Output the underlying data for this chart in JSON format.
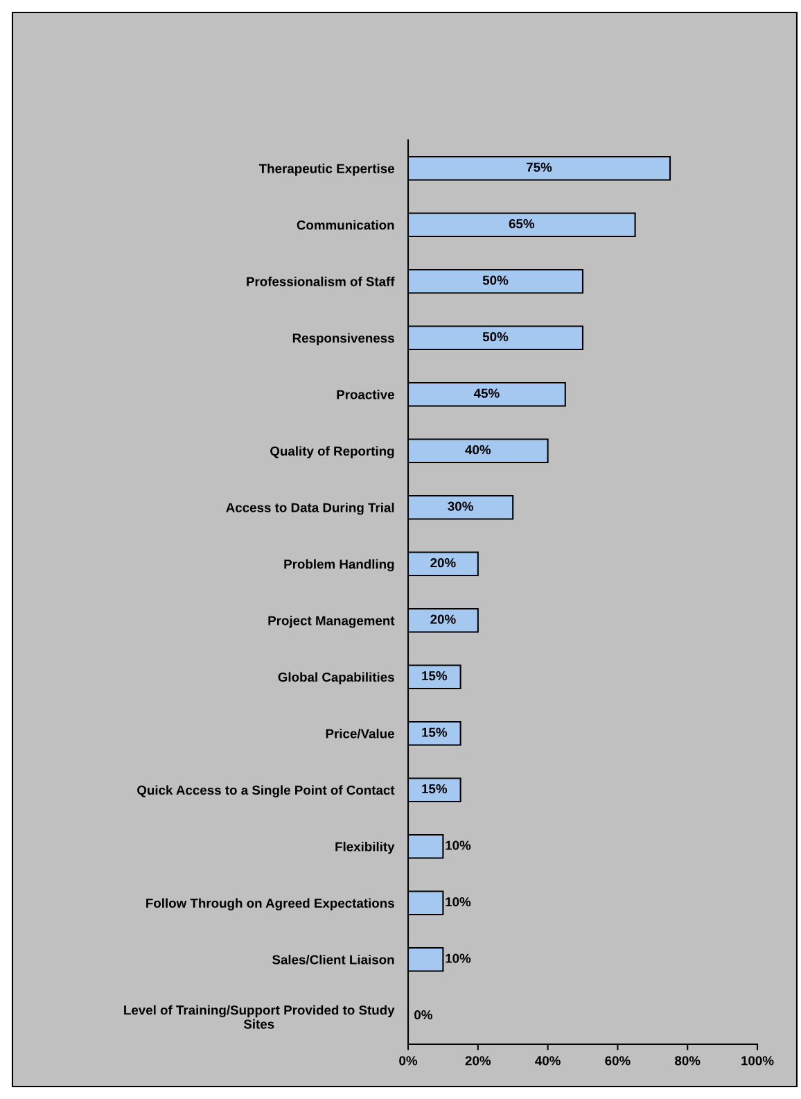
{
  "chart_data": {
    "type": "bar",
    "orientation": "horizontal",
    "categories": [
      "Therapeutic Expertise",
      "Communication",
      "Professionalism of Staff",
      "Responsiveness",
      "Proactive",
      "Quality of Reporting",
      "Access to Data During Trial",
      "Problem Handling",
      "Project Management",
      "Global Capabilities",
      "Price/Value",
      "Quick Access to a Single Point of Contact",
      "Flexibility",
      "Follow Through on Agreed Expectations",
      "Sales/Client Liaison",
      "Level of Training/Support Provided to Study\nSites"
    ],
    "values": [
      75,
      65,
      50,
      50,
      45,
      40,
      30,
      20,
      20,
      15,
      15,
      15,
      10,
      10,
      10,
      0
    ],
    "value_labels": [
      "75%",
      "65%",
      "50%",
      "50%",
      "45%",
      "40%",
      "30%",
      "20%",
      "20%",
      "15%",
      "15%",
      "15%",
      "10%",
      "10%",
      "10%",
      "0%"
    ],
    "color": "#a4c8f0",
    "xlim": [
      0,
      100
    ],
    "xticks": [
      {
        "value": 0,
        "label": "0%"
      },
      {
        "value": 20,
        "label": "20%"
      },
      {
        "value": 40,
        "label": "40%"
      },
      {
        "value": 60,
        "label": "60%"
      },
      {
        "value": 80,
        "label": "80%"
      },
      {
        "value": 100,
        "label": "100%"
      }
    ],
    "grid": false,
    "legend": false
  }
}
